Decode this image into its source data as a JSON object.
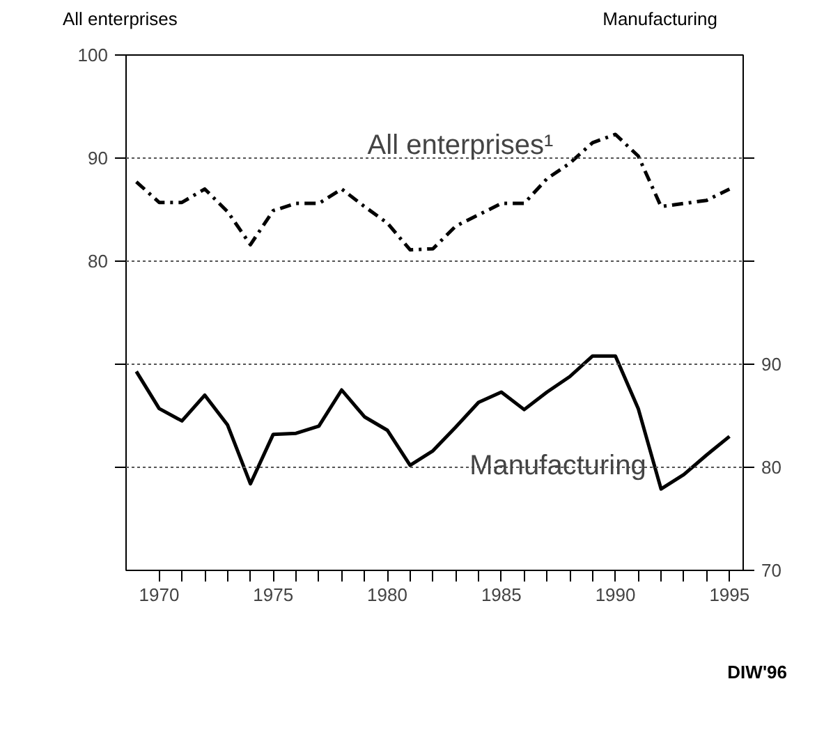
{
  "chart_data": {
    "type": "line",
    "ylabel": "All enterprises",
    "y2label": "Manufacturing",
    "x": [
      1969,
      1970,
      1971,
      1972,
      1973,
      1974,
      1975,
      1976,
      1977,
      1978,
      1979,
      1980,
      1981,
      1982,
      1983,
      1984,
      1985,
      1986,
      1987,
      1988,
      1989,
      1990,
      1991,
      1992,
      1993,
      1994,
      1995
    ],
    "series": [
      {
        "color": "#000000",
        "line_style": "dashed",
        "values": [
          87.7,
          85.7,
          85.7,
          87.0,
          84.8,
          81.6,
          84.9,
          85.6,
          85.6,
          87.0,
          85.3,
          83.7,
          81.1,
          81.2,
          83.4,
          84.5,
          85.6,
          85.6,
          88.0,
          89.5,
          91.5,
          92.3,
          90.2,
          85.3,
          85.6,
          85.9,
          87.0
        ]
      },
      {
        "color": "#000000",
        "line_style": "solid",
        "axis": "y2",
        "values": [
          89.3,
          85.7,
          84.5,
          87.0,
          84.1,
          78.4,
          83.2,
          83.3,
          84.0,
          87.5,
          84.9,
          83.6,
          80.2,
          81.6,
          83.9,
          86.3,
          87.3,
          85.6,
          87.3,
          88.8,
          90.8,
          90.8,
          85.7,
          77.9,
          79.3,
          81.2,
          83.0
        ]
      }
    ],
    "xlim": [
      1968.55,
      1995.6
    ],
    "xticks": [
      {
        "value": 1970,
        "label": "1970"
      },
      {
        "value": 1971,
        "label": null
      },
      {
        "value": 1972,
        "label": null
      },
      {
        "value": 1973,
        "label": null
      },
      {
        "value": 1974,
        "label": null
      },
      {
        "value": 1975,
        "label": "1975"
      },
      {
        "value": 1976,
        "label": null
      },
      {
        "value": 1977,
        "label": null
      },
      {
        "value": 1978,
        "label": null
      },
      {
        "value": 1979,
        "label": null
      },
      {
        "value": 1980,
        "label": "1980"
      },
      {
        "value": 1981,
        "label": null
      },
      {
        "value": 1982,
        "label": null
      },
      {
        "value": 1983,
        "label": null
      },
      {
        "value": 1984,
        "label": null
      },
      {
        "value": 1985,
        "label": "1985"
      },
      {
        "value": 1986,
        "label": null
      },
      {
        "value": 1987,
        "label": null
      },
      {
        "value": 1988,
        "label": null
      },
      {
        "value": 1989,
        "label": null
      },
      {
        "value": 1990,
        "label": "1990"
      },
      {
        "value": 1991,
        "label": null
      },
      {
        "value": 1992,
        "label": null
      },
      {
        "value": 1993,
        "label": null
      },
      {
        "value": 1994,
        "label": null
      },
      {
        "value": 1995,
        "label": "1995"
      }
    ],
    "ylim": [
      50,
      100
    ],
    "yticks": [
      100,
      90,
      80,
      {
        "value": 70,
        "label": null
      },
      {
        "value": 60,
        "label": null
      }
    ],
    "y2lim": [
      70,
      120
    ],
    "y2ticks": [
      70,
      80,
      90,
      {
        "value": 100,
        "label": null
      },
      {
        "value": 110,
        "label": null
      }
    ],
    "grid": "y",
    "marker": "none",
    "annotations": [
      "All enterprises¹",
      "Manufacturing",
      "DIW'96"
    ]
  }
}
